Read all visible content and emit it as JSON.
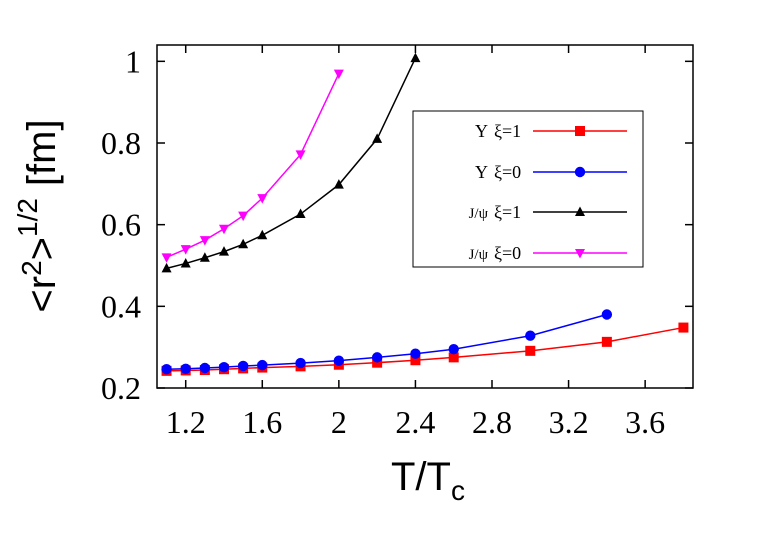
{
  "chart_data": {
    "type": "line",
    "title": "",
    "xlabel": {
      "main": "T/T",
      "sub": "c"
    },
    "ylabel": {
      "main": "<r",
      "sup1": "2",
      "mid": ">",
      "sup2": "1/2",
      "unit": "[fm]"
    },
    "xlim": [
      1.05,
      3.85
    ],
    "ylim": [
      0.2,
      1.04
    ],
    "xticks": [
      1.2,
      1.6,
      2,
      2.4,
      2.8,
      3.2,
      3.6
    ],
    "xtick_labels": [
      "1.2",
      "1.6",
      "2",
      "2.4",
      "2.8",
      "3.2",
      "3.6"
    ],
    "yticks": [
      0.2,
      0.4,
      0.6,
      0.8,
      1
    ],
    "ytick_labels": [
      "0.2",
      "0.4",
      "0.6",
      "0.8",
      "1"
    ],
    "grid": false,
    "legend_position": "top-right",
    "series": [
      {
        "name": "ϒ ξ=1",
        "label": {
          "particle": "Υ",
          "xi": "ξ=1"
        },
        "color": "#ff0000",
        "marker": "square",
        "x": [
          1.1,
          1.2,
          1.3,
          1.4,
          1.5,
          1.6,
          1.8,
          2.0,
          2.2,
          2.4,
          2.6,
          3.0,
          3.4,
          3.8
        ],
        "y": [
          0.242,
          0.243,
          0.244,
          0.246,
          0.248,
          0.25,
          0.253,
          0.257,
          0.262,
          0.268,
          0.275,
          0.291,
          0.313,
          0.348
        ]
      },
      {
        "name": "ϒ ξ=0",
        "label": {
          "particle": "Υ",
          "xi": "ξ=0"
        },
        "color": "#0000ff",
        "marker": "circle",
        "x": [
          1.1,
          1.2,
          1.3,
          1.4,
          1.5,
          1.6,
          1.8,
          2.0,
          2.2,
          2.4,
          2.6,
          3.0,
          3.4
        ],
        "y": [
          0.246,
          0.247,
          0.249,
          0.251,
          0.254,
          0.256,
          0.261,
          0.267,
          0.275,
          0.284,
          0.295,
          0.328,
          0.38
        ]
      },
      {
        "name": "J/ψ ξ=1",
        "label": {
          "particle": "J/ψ",
          "xi": "ξ=1"
        },
        "color": "#000000",
        "marker": "triangle-up",
        "x": [
          1.1,
          1.2,
          1.3,
          1.4,
          1.5,
          1.6,
          1.8,
          2.0,
          2.2,
          2.4
        ],
        "y": [
          0.493,
          0.505,
          0.519,
          0.534,
          0.552,
          0.574,
          0.626,
          0.698,
          0.81,
          1.008
        ]
      },
      {
        "name": "J/ψ ξ=0",
        "label": {
          "particle": "J/ψ",
          "xi": "ξ=0"
        },
        "color": "#ff00ff",
        "marker": "triangle-down",
        "x": [
          1.1,
          1.2,
          1.3,
          1.4,
          1.5,
          1.6,
          1.8,
          2.0
        ],
        "y": [
          0.52,
          0.54,
          0.562,
          0.59,
          0.622,
          0.665,
          0.772,
          0.97
        ]
      }
    ]
  }
}
